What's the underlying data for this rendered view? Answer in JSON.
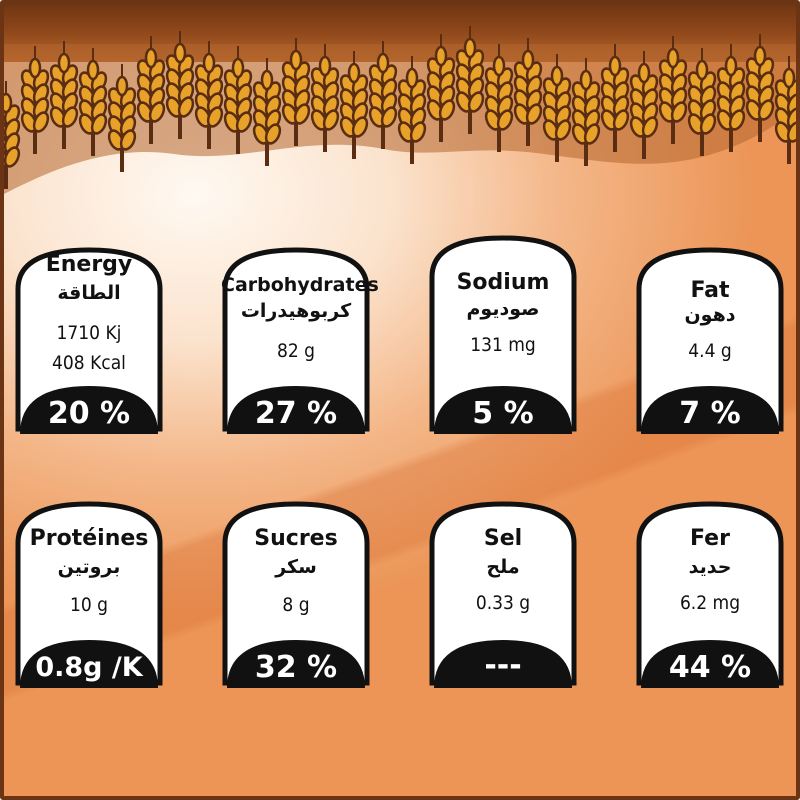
{
  "colors": {
    "frame": "#6b3415",
    "band_dark": "#6e3614",
    "band_light": "#b5662e",
    "wheat_fill": "#e8a22a",
    "wheat_outline": "#5a2d12",
    "badge": "#111111",
    "card_fill": "#ffffff"
  },
  "row1": [
    {
      "name": "Energy",
      "arabic": "الطاقة",
      "value": "1710 Kj",
      "value2": "408 Kcal",
      "percent": "20 %"
    },
    {
      "name": "Carbohydrates",
      "arabic": "كربوهيدرات",
      "value": "82 g",
      "percent": "27 %"
    },
    {
      "name": "Sodium",
      "arabic": "صوديوم",
      "value": "131 mg",
      "percent": "5 %"
    },
    {
      "name": "Fat",
      "arabic": "دهون",
      "value": "4.4 g",
      "percent": "7 %"
    }
  ],
  "row2": [
    {
      "name": "Protéines",
      "arabic": "بروتين",
      "value": "10 g",
      "percent": "0.8g /K"
    },
    {
      "name": "Sucres",
      "arabic": "سكر",
      "value": "8 g",
      "percent": "32 %"
    },
    {
      "name": "Sel",
      "arabic": "ملح",
      "value": "0.33 g",
      "percent": "---"
    },
    {
      "name": "Fer",
      "arabic": "حديد",
      "value": "6.2 mg",
      "percent": "44 %"
    }
  ]
}
